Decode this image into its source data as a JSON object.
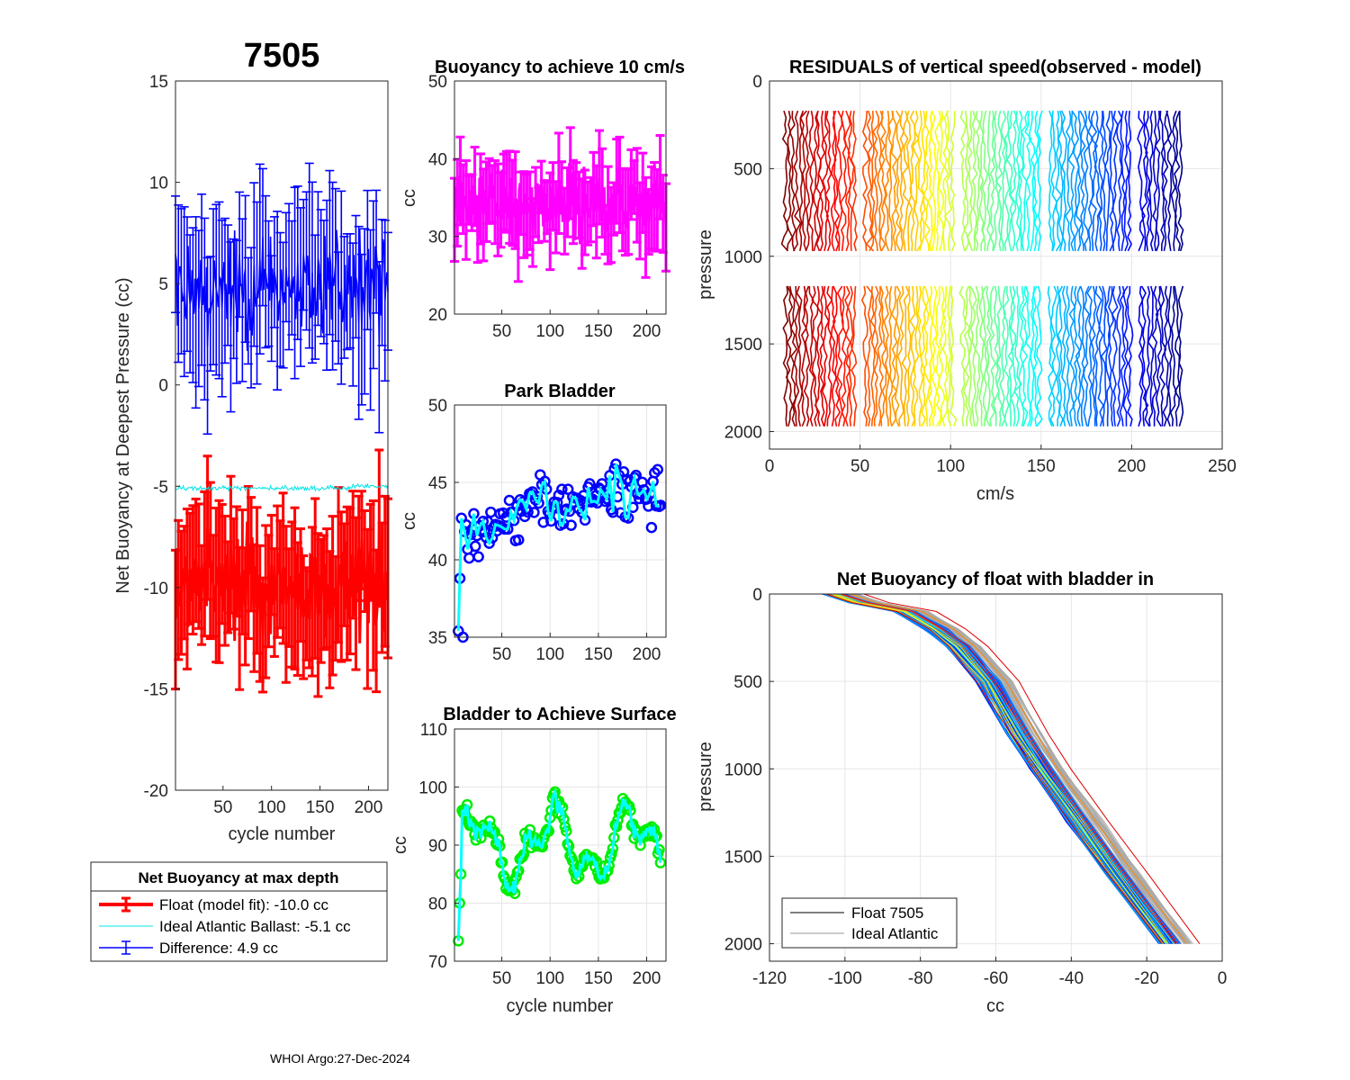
{
  "footer": "WHOI Argo:27-Dec-2024",
  "chart_data": [
    {
      "id": "netbuoy",
      "type": "line",
      "title": "7505",
      "xlabel": "cycle number",
      "ylabel": "Net Buoyancy at Deepest Pressure (cc)",
      "xlim": [
        1,
        220
      ],
      "ylim": [
        -20,
        15
      ],
      "xticks": [
        50,
        100,
        150,
        200
      ],
      "yticks": [
        -20,
        -15,
        -10,
        -5,
        0,
        5,
        10,
        15
      ],
      "series": [
        {
          "name": "Float (model fit)",
          "color": "#ff0000",
          "mean": -10.0,
          "error": 2.8
        },
        {
          "name": "Ideal Atlantic Ballast",
          "color": "#00e5e5",
          "mean": -5.1
        },
        {
          "name": "Difference",
          "color": "#0000ff",
          "mean": 4.9,
          "error": 3.2
        }
      ],
      "legend": {
        "title": "Net Buoyancy at max depth",
        "entries": [
          "Float (model fit): -10.0 cc",
          "Ideal Atlantic Ballast:  -5.1 cc",
          "Difference:   4.9 cc"
        ]
      }
    },
    {
      "id": "buoy10",
      "type": "line",
      "title": "Buoyancy to achieve 10 cm/s",
      "xlabel": "",
      "ylabel": "cc",
      "xlim": [
        1,
        220
      ],
      "ylim": [
        20,
        50
      ],
      "xticks": [
        50,
        100,
        150,
        200
      ],
      "yticks": [
        20,
        30,
        40,
        50
      ],
      "color": "#ff00ff",
      "mean": 34.5,
      "error": 5
    },
    {
      "id": "park",
      "type": "line",
      "title": "Park Bladder",
      "xlabel": "",
      "ylabel": "cc",
      "xlim": [
        1,
        220
      ],
      "ylim": [
        35,
        50
      ],
      "xticks": [
        50,
        100,
        150,
        200
      ],
      "yticks": [
        35,
        40,
        45,
        50
      ],
      "marker_color": "#0000ff",
      "line_color": "#00ffff",
      "trend": [
        [
          1,
          41
        ],
        [
          50,
          42.5
        ],
        [
          100,
          43.5
        ],
        [
          150,
          44.2
        ],
        [
          220,
          44.5
        ]
      ]
    },
    {
      "id": "surface",
      "type": "line",
      "title": "Bladder to Achieve Surface",
      "xlabel": "cycle number",
      "ylabel": "cc",
      "xlim": [
        1,
        220
      ],
      "ylim": [
        70,
        110
      ],
      "xticks": [
        50,
        100,
        150,
        200
      ],
      "yticks": [
        70,
        80,
        90,
        100,
        110
      ],
      "marker_color": "#00ee00",
      "line_color": "#00ffff",
      "mean": 90
    },
    {
      "id": "residuals",
      "type": "line",
      "title": "RESIDUALS of vertical speed(observed - model)",
      "xlabel": "cm/s",
      "ylabel": "pressure",
      "xlim": [
        0,
        250
      ],
      "ylim": [
        0,
        2100
      ],
      "y_reversed": true,
      "xticks": [
        0,
        50,
        100,
        150,
        200,
        250
      ],
      "yticks": [
        0,
        500,
        1000,
        1500,
        2000
      ],
      "profiles": 220,
      "upper_range": [
        170,
        1000
      ],
      "lower_range": [
        1170,
        2000
      ]
    },
    {
      "id": "netbuoy_profile",
      "type": "line",
      "title": "Net Buoyancy of float with bladder in",
      "xlabel": "cc",
      "ylabel": "pressure",
      "xlim": [
        -120,
        0
      ],
      "ylim": [
        0,
        2100
      ],
      "y_reversed": true,
      "xticks": [
        -120,
        -100,
        -80,
        -60,
        -40,
        -20,
        0
      ],
      "yticks": [
        0,
        500,
        1000,
        1500,
        2000
      ],
      "mean_profile": [
        [
          0,
          -101
        ],
        [
          50,
          -94
        ],
        [
          100,
          -82
        ],
        [
          200,
          -74
        ],
        [
          300,
          -68
        ],
        [
          500,
          -60
        ],
        [
          800,
          -52
        ],
        [
          1000,
          -46
        ],
        [
          1300,
          -36
        ],
        [
          1600,
          -26
        ],
        [
          2000,
          -12
        ]
      ],
      "legend": {
        "entries": [
          "Float 7505",
          "Ideal Atlantic"
        ],
        "colors": [
          "#000000",
          "#999999"
        ]
      }
    }
  ]
}
